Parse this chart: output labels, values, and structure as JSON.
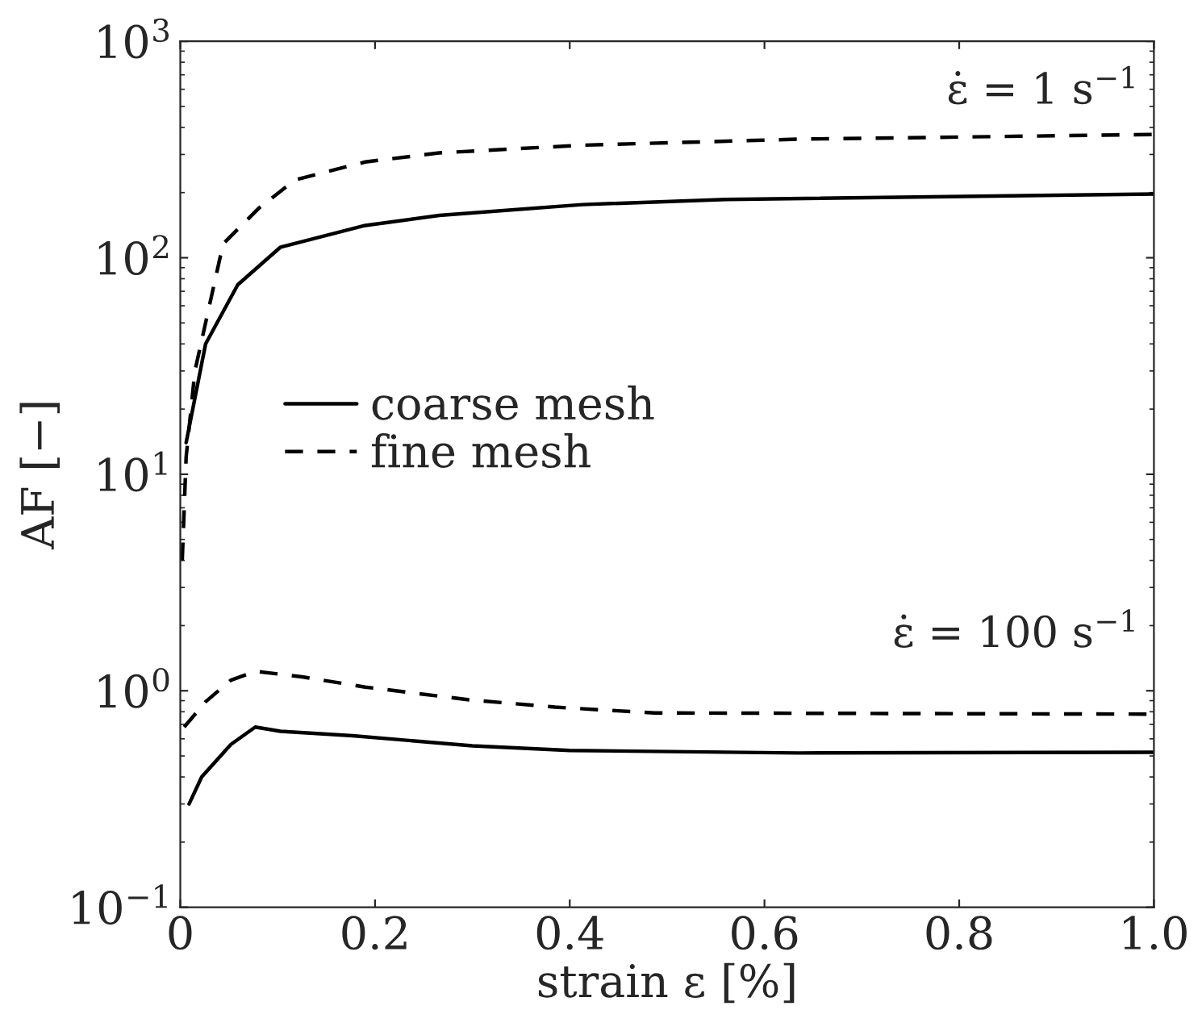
{
  "chart_data": {
    "type": "line",
    "xlabel": "strain ε [%]",
    "ylabel": "AF [−]",
    "log": "y",
    "xlim": [
      0,
      1.0
    ],
    "xticks": [
      {
        "value": 0,
        "label": "0"
      },
      0.2,
      0.4,
      0.6,
      0.8,
      {
        "value": 1.0,
        "label": "1.0"
      }
    ],
    "ylim": [
      0.1,
      1000
    ],
    "yticks": [
      {
        "value": 0.1,
        "label": "10$^{−1}$"
      },
      {
        "value": 1,
        "label": "10$^{0}$"
      },
      {
        "value": 10,
        "label": "10$^{1}$"
      },
      {
        "value": 100,
        "label": "10$^{2}$"
      },
      {
        "value": 1000,
        "label": "10$^{3}$"
      }
    ],
    "grid": false,
    "legend": "center",
    "series": [
      {
        "name": "coarse mesh",
        "color": "#000000",
        "line_style": "solid",
        "x": [
          0.006,
          0.026,
          0.059,
          0.103,
          0.19,
          0.266,
          0.413,
          0.56,
          1.0
        ],
        "values": [
          14,
          40,
          75,
          112,
          141,
          157,
          176,
          186,
          197
        ]
      },
      {
        "name": "fine mesh",
        "color": "#000000",
        "line_style": "dashed",
        "x": [
          0.002,
          0.006,
          0.015,
          0.044,
          0.081,
          0.118,
          0.19,
          0.266,
          0.413,
          0.635,
          1.0
        ],
        "values": [
          4,
          12,
          30,
          116,
          170,
          229,
          277,
          305,
          331,
          353,
          371
        ]
      },
      {
        "color": "#000000",
        "line_style": "solid",
        "x": [
          0.009,
          0.022,
          0.052,
          0.077,
          0.103,
          0.177,
          0.3,
          0.4,
          0.635,
          1.0
        ],
        "values": [
          0.3,
          0.4,
          0.565,
          0.68,
          0.65,
          0.62,
          0.557,
          0.53,
          0.516,
          0.52
        ]
      },
      {
        "color": "#000000",
        "line_style": "dashed",
        "x": [
          0.004,
          0.026,
          0.052,
          0.077,
          0.125,
          0.19,
          0.295,
          0.385,
          0.487,
          1.0
        ],
        "values": [
          0.68,
          0.89,
          1.12,
          1.23,
          1.16,
          1.04,
          0.91,
          0.84,
          0.79,
          0.78
        ]
      }
    ],
    "annotations": [
      "ε̇ = 1 s$^{−1}$",
      "ε̇ = 100 s$^{−1}$"
    ]
  }
}
